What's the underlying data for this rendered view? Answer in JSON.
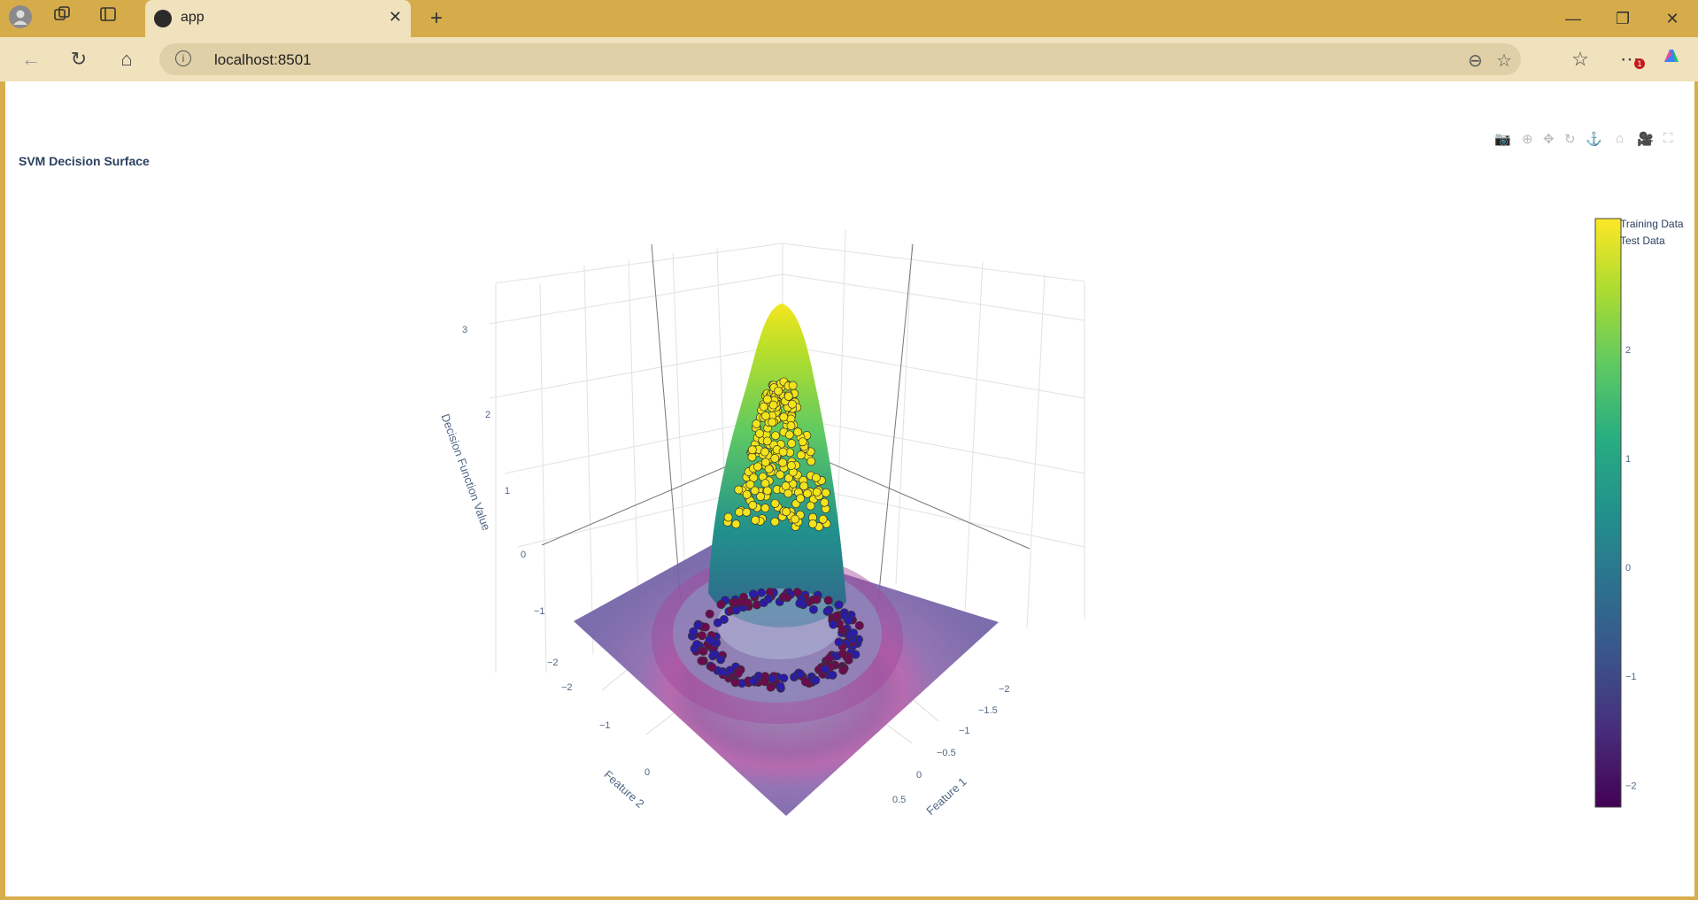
{
  "browser": {
    "tab_title": "app",
    "url": "localhost:8501",
    "notification_badge": "1"
  },
  "chart_data": {
    "type": "surface",
    "title": "SVM Decision Surface",
    "xlabel": "Feature 1",
    "ylabel": "Feature 2",
    "zlabel": "Decision Function Value",
    "x_ticks": [
      "−2",
      "−1.5",
      "−1",
      "−0.5",
      "0",
      "0.5"
    ],
    "y_ticks": [
      "−2",
      "−1",
      "0"
    ],
    "z_ticks": [
      "−2",
      "−1",
      "0",
      "1",
      "2",
      "3"
    ],
    "zlim": [
      -2.2,
      3.2
    ],
    "surface_peak_z": 3.2,
    "colorscale": "Viridis",
    "colorbar_ticks": [
      "2",
      "1",
      "0",
      "−1",
      "−2"
    ],
    "colorbar_range": [
      -2.2,
      3.2
    ],
    "legend": [
      "Training Data",
      "Test Data"
    ],
    "legend_position": "top-right",
    "colors": {
      "class_positive": "#f2e31a",
      "class_negative_a": "#2a1ba8",
      "class_negative_b": "#6b0a4e",
      "surface_base": "#7b6aa8"
    }
  }
}
